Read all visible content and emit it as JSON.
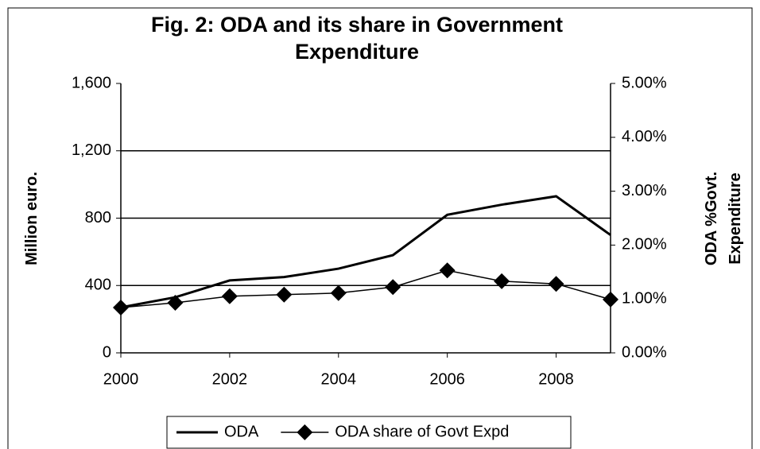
{
  "chart_data": {
    "type": "line",
    "title": "Fig. 2: ODA and its share in Government Expenditure",
    "y_label": "Million euro.",
    "y2_label": "ODA %Govt. Expenditure",
    "x": [
      2000,
      2001,
      2002,
      2003,
      2004,
      2005,
      2006,
      2007,
      2008,
      2009
    ],
    "xlim": [
      2000,
      2009
    ],
    "xticks": [
      2000,
      2002,
      2004,
      2006,
      2008
    ],
    "ylim": [
      0,
      1600
    ],
    "yticks": [
      0,
      400,
      800,
      {
        "value": 1200,
        "label": "1,200"
      },
      {
        "value": 1600,
        "label": "1,600"
      }
    ],
    "y2lim": [
      0,
      5
    ],
    "y2ticks": [
      {
        "value": 0,
        "label": "0.00%"
      },
      {
        "value": 1,
        "label": "1.00%"
      },
      {
        "value": 2,
        "label": "2.00%"
      },
      {
        "value": 3,
        "label": "3.00%"
      },
      {
        "value": 4,
        "label": "4.00%"
      },
      {
        "value": 5,
        "label": "5.00%"
      }
    ],
    "grid": true,
    "legend": "bottom",
    "series": [
      {
        "name": "ODA",
        "color": "#000000",
        "marker": "none",
        "values": [
          270,
          330,
          430,
          450,
          500,
          580,
          820,
          880,
          930,
          700
        ]
      },
      {
        "name": "ODA share of Govt Expd",
        "color": "#000000",
        "marker": "diamond",
        "axis": "y2",
        "values": [
          0.84,
          0.93,
          1.05,
          1.08,
          1.11,
          1.22,
          1.53,
          1.33,
          1.28,
          0.99
        ]
      }
    ]
  }
}
